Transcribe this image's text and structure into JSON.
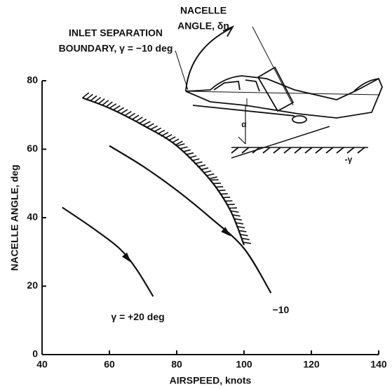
{
  "chart_data": {
    "type": "line",
    "x_label": "AIRSPEED, knots",
    "y_label": "NACELLE ANGLE, deg",
    "xlim": [
      40,
      140
    ],
    "xticks": [
      40,
      60,
      80,
      100,
      120,
      140
    ],
    "ylim": [
      0,
      80
    ],
    "yticks": [
      0,
      20,
      40,
      60,
      80
    ],
    "grid": false,
    "series": [
      {
        "color": "#111",
        "hatched": true,
        "x": [
          52,
          60,
          70,
          80,
          90,
          96,
          100
        ],
        "values": [
          75,
          72,
          67,
          61,
          51,
          42,
          32
        ]
      },
      {
        "name": "−10",
        "color": "#111",
        "x": [
          60,
          70,
          80,
          90,
          100,
          108
        ],
        "values": [
          61,
          55,
          48,
          40,
          31,
          18
        ]
      },
      {
        "name": "γ = +20 deg",
        "color": "#111",
        "x": [
          46,
          55,
          63,
          68,
          73
        ],
        "values": [
          43,
          37,
          31,
          25,
          17
        ]
      }
    ],
    "annotations": {
      "boundary": [
        "INLET SEPARATION",
        "BOUNDARY, γ = −10 deg"
      ],
      "nacelle": [
        "NACELLE",
        "ANGLE, δn"
      ],
      "alpha": "α",
      "gamma": "-γ"
    }
  }
}
